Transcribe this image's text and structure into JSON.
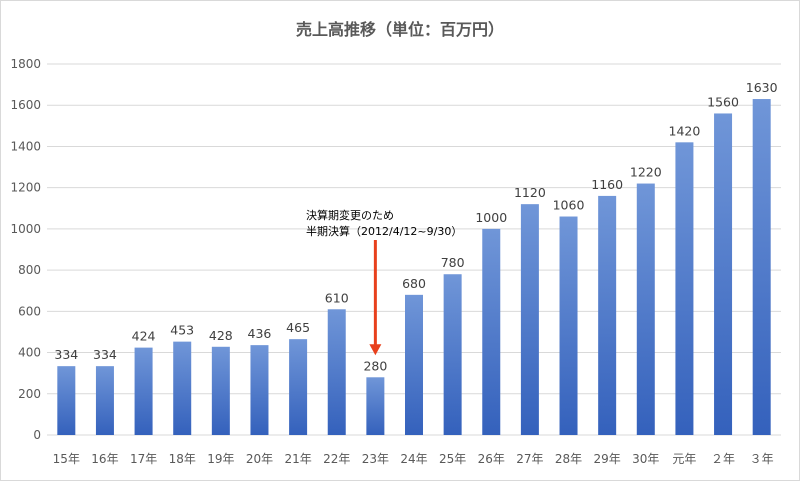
{
  "chart_data": {
    "type": "bar",
    "title": "売上高推移（単位：百万円）",
    "xlabel": "",
    "ylabel": "",
    "ylim": [
      0,
      1800
    ],
    "yticks": [
      0,
      200,
      400,
      600,
      800,
      1000,
      1200,
      1400,
      1600,
      1800
    ],
    "grid": true,
    "legend": "none",
    "categories": [
      "15年",
      "16年",
      "17年",
      "18年",
      "19年",
      "20年",
      "21年",
      "22年",
      "23年",
      "24年",
      "25年",
      "26年",
      "27年",
      "28年",
      "29年",
      "30年",
      "元年",
      "２年",
      "３年"
    ],
    "series": [
      {
        "name": "売上高",
        "values": [
          334,
          334,
          424,
          453,
          428,
          436,
          465,
          610,
          280,
          680,
          780,
          1000,
          1120,
          1060,
          1160,
          1220,
          1420,
          1560,
          1630
        ],
        "color_top": "#7096D8",
        "color_bottom": "#3461BC"
      }
    ],
    "annotation": {
      "lines": [
        "決算期変更のため",
        "半期決算（2012/4/12~9/30）"
      ],
      "target_category": "23年",
      "arrow_color": "#E8401C"
    }
  }
}
